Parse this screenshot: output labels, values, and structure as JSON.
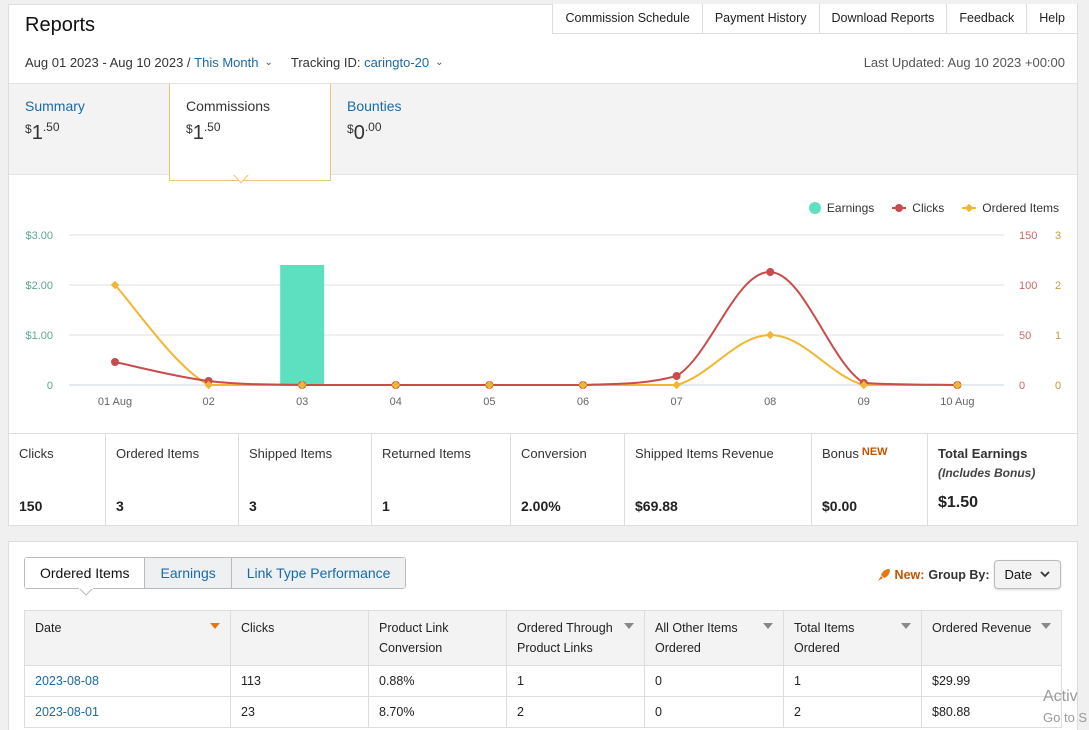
{
  "header": {
    "title": "Reports",
    "nav": [
      "Commission Schedule",
      "Payment History",
      "Download Reports",
      "Feedback",
      "Help"
    ]
  },
  "filters": {
    "date_range": "Aug 01 2023 - Aug 10 2023 /",
    "period": "This Month",
    "tracking_label": "Tracking ID:",
    "tracking_id": "caringto-20",
    "last_updated": "Last Updated: Aug 10 2023 +00:00"
  },
  "summary_tabs": [
    {
      "label": "Summary",
      "currency": "$",
      "whole": "1",
      "cents": "50",
      "active": false
    },
    {
      "label": "Commissions",
      "currency": "$",
      "whole": "1",
      "cents": "50",
      "active": true
    },
    {
      "label": "Bounties",
      "currency": "$",
      "whole": "0",
      "cents": "00",
      "active": false
    }
  ],
  "chart_data": {
    "type": "bar+line",
    "legend": [
      "Earnings",
      "Clicks",
      "Ordered Items"
    ],
    "colors": {
      "earnings": "#5ce0c0",
      "clicks": "#c94c4c",
      "ordered": "#f2b632"
    },
    "categories": [
      "01 Aug",
      "02",
      "03",
      "04",
      "05",
      "06",
      "07",
      "08",
      "09",
      "10 Aug"
    ],
    "earnings": [
      0,
      0,
      2.4,
      0,
      0,
      0,
      0,
      0,
      0,
      0
    ],
    "clicks": [
      23,
      4,
      0,
      0,
      0,
      0,
      9,
      113,
      2,
      0
    ],
    "ordered_items": [
      2,
      0,
      0,
      0,
      0,
      0,
      0,
      1,
      0,
      0
    ],
    "left_axis": {
      "ticks": [
        "$3.00",
        "$2.00",
        "$1.00",
        "0"
      ],
      "range": [
        0,
        3
      ]
    },
    "clicks_axis": {
      "ticks": [
        "150",
        "100",
        "50",
        "0"
      ],
      "range": [
        0,
        150
      ]
    },
    "items_axis": {
      "ticks": [
        "3",
        "2",
        "1",
        "0"
      ],
      "range": [
        0,
        3
      ]
    }
  },
  "stats": [
    {
      "label": "Clicks",
      "value": "150"
    },
    {
      "label": "Ordered Items",
      "value": "3"
    },
    {
      "label": "Shipped Items",
      "value": "3"
    },
    {
      "label": "Returned Items",
      "value": "1"
    },
    {
      "label": "Conversion",
      "value": "2.00%"
    },
    {
      "label": "Shipped Items Revenue",
      "value": "$69.88"
    },
    {
      "label": "Bonus",
      "badge": "NEW",
      "value": "$0.00"
    },
    {
      "label": "Total Earnings",
      "sub": "(Includes Bonus)",
      "value": "$1.50"
    }
  ],
  "report_tabs": [
    "Ordered Items",
    "Earnings",
    "Link Type Performance"
  ],
  "group_by": {
    "new": "New:",
    "label": "Group By:",
    "value": "Date"
  },
  "table": {
    "headers": [
      "Date",
      "Clicks",
      "Product Link Conversion",
      "Ordered Through Product Links",
      "All Other Items Ordered",
      "Total Items Ordered",
      "Ordered Revenue"
    ],
    "rows": [
      [
        "2023-08-08",
        "113",
        "0.88%",
        "1",
        "0",
        "1",
        "$29.99"
      ],
      [
        "2023-08-01",
        "23",
        "8.70%",
        "2",
        "0",
        "2",
        "$80.88"
      ]
    ]
  },
  "watermark": {
    "line1": "Activ",
    "line2": "Go to S"
  }
}
